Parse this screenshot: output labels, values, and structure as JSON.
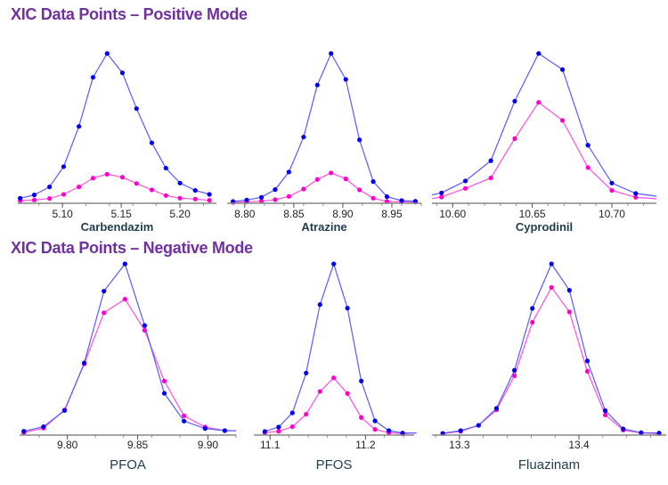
{
  "titles": {
    "positive": "XIC Data Points – Positive Mode",
    "negative": "XIC Data Points – Negative Mode"
  },
  "colors": {
    "series_a": "#0000ee",
    "series_a_line": "#5a5aff",
    "series_b": "#ff00cc",
    "series_b_line": "#ff4fe0",
    "axis": "#888888",
    "title": "#7030a0"
  },
  "chart_data": [
    {
      "type": "line",
      "title": "Carbendazim",
      "mode": "positive",
      "xlim": [
        5.062,
        5.231
      ],
      "ylim": [
        0,
        100
      ],
      "xticks": [
        "5.10",
        "5.15",
        "5.20"
      ],
      "x": [
        5.064,
        5.076,
        5.089,
        5.101,
        5.114,
        5.126,
        5.138,
        5.151,
        5.163,
        5.176,
        5.188,
        5.2,
        5.213,
        5.225
      ],
      "series": [
        {
          "name": "blue",
          "values": [
            2.8,
            5,
            10.4,
            24,
            51,
            84,
            100,
            87,
            63,
            40,
            23,
            13,
            8,
            5.4
          ]
        },
        {
          "name": "magenta",
          "values": [
            1.2,
            1.6,
            2.6,
            5.4,
            10.4,
            16.3,
            18.9,
            16.9,
            12.7,
            8.4,
            4.6,
            2.8,
            2.2,
            1.4
          ]
        }
      ]
    },
    {
      "type": "line",
      "title": "Atrazine",
      "mode": "positive",
      "xlim": [
        8.782,
        8.98
      ],
      "ylim": [
        0,
        100
      ],
      "xticks": [
        "8.80",
        "8.85",
        "8.90",
        "8.95"
      ],
      "x": [
        8.788,
        8.802,
        8.817,
        8.831,
        8.845,
        8.86,
        8.874,
        8.888,
        8.903,
        8.917,
        8.931,
        8.945,
        8.96,
        8.974
      ],
      "series": [
        {
          "name": "blue",
          "values": [
            0.6,
            1.6,
            3.4,
            8.6,
            20.4,
            43.9,
            78.8,
            100,
            82.6,
            42,
            14,
            3.8,
            1.2,
            0.8
          ]
        },
        {
          "name": "magenta",
          "values": [
            0,
            0.4,
            0.8,
            1.8,
            4,
            9,
            15.4,
            19.8,
            15.8,
            8.4,
            2.8,
            0.6,
            0.4,
            0.2
          ]
        }
      ]
    },
    {
      "type": "line",
      "title": "Cyprodinil",
      "mode": "positive",
      "xlim": [
        10.587,
        10.728
      ],
      "ylim": [
        0,
        100
      ],
      "xticks": [
        "10.60",
        "10.65",
        "10.70"
      ],
      "x": [
        10.587,
        10.593,
        10.608,
        10.624,
        10.639,
        10.654,
        10.669,
        10.685,
        10.7,
        10.715,
        10.728
      ],
      "series": [
        {
          "name": "blue",
          "values": [
            5,
            6.4,
            14.4,
            28,
            68,
            100,
            89.2,
            38.4,
            13,
            6,
            4.2
          ]
        },
        {
          "name": "magenta",
          "values": [
            2.6,
            3.6,
            9.4,
            16.4,
            42.8,
            67.2,
            55,
            23.4,
            8,
            3.4,
            2.4
          ]
        }
      ]
    },
    {
      "type": "line",
      "title": "PFOA",
      "mode": "negative",
      "xlim": [
        9.766,
        9.92
      ],
      "ylim": [
        0,
        100
      ],
      "xticks": [
        "9.80",
        "9.85",
        "9.90"
      ],
      "x": [
        9.769,
        9.783,
        9.798,
        9.812,
        9.826,
        9.841,
        9.855,
        9.869,
        9.883,
        9.898,
        9.912,
        9.92
      ],
      "series": [
        {
          "name": "blue",
          "values": [
            1.7,
            4.4,
            13.9,
            41.8,
            84,
            100,
            63.8,
            24,
            7.7,
            3.3,
            2.1,
            2
          ]
        },
        {
          "name": "magenta",
          "values": [
            0.9,
            3.5,
            14.3,
            41.3,
            71.3,
            79.3,
            61,
            31.2,
            10.8,
            4.2,
            2.1,
            2
          ]
        }
      ]
    },
    {
      "type": "line",
      "title": "PFOS",
      "mode": "negative",
      "xlim": [
        11.083,
        11.251
      ],
      "ylim": [
        0,
        100
      ],
      "xticks": [
        "11.1",
        "11.2"
      ],
      "x": [
        11.0945,
        11.109,
        11.1234,
        11.1378,
        11.1523,
        11.1667,
        11.1811,
        11.1956,
        11.21,
        11.2245,
        11.2389,
        11.2534
      ],
      "series": [
        {
          "name": "blue",
          "values": [
            1.6,
            4.2,
            12.5,
            35.9,
            76.1,
            100,
            74,
            31.2,
            7.8,
            2.1,
            0.7,
            0.7
          ]
        },
        {
          "name": "magenta",
          "values": [
            0.9,
            1.7,
            4.4,
            11.7,
            25.1,
            33.1,
            23.9,
            9.8,
            2.8,
            0.9,
            0.3,
            0.7
          ]
        }
      ]
    },
    {
      "type": "line",
      "title": "Fluazinam",
      "mode": "negative",
      "xlim": [
        13.277,
        13.473
      ],
      "ylim": [
        0,
        100
      ],
      "xticks": [
        "13.3",
        "13.4"
      ],
      "x": [
        13.286,
        13.301,
        13.316,
        13.331,
        13.346,
        13.361,
        13.377,
        13.392,
        13.407,
        13.422,
        13.437,
        13.452,
        13.467
      ],
      "series": [
        {
          "name": "blue",
          "values": [
            0.5,
            2.1,
            5.2,
            15.2,
            37.5,
            73.9,
            100,
            84.5,
            43,
            13.8,
            3.1,
            0.9,
            0.7
          ]
        },
        {
          "name": "magenta",
          "values": [
            0.3,
            1.7,
            5.2,
            14.3,
            34.3,
            65.7,
            86.2,
            71.8,
            36.9,
            11.3,
            2.4,
            0.7,
            0.3
          ]
        }
      ]
    }
  ]
}
